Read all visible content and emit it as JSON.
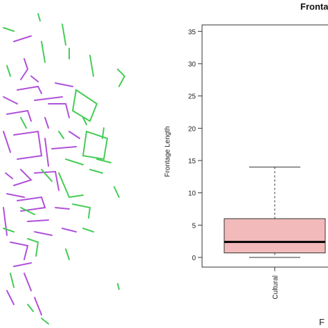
{
  "map": {
    "colors": {
      "cultural": "#b050d8",
      "other": "#44cc55"
    }
  },
  "chart_data": {
    "type": "boxplot",
    "title": "Fronta",
    "ylabel": "Frontage Length",
    "xlabel_partial": "F",
    "ylim": [
      -1.5,
      36
    ],
    "yticks": [
      0,
      5,
      10,
      15,
      20,
      25,
      30,
      35
    ],
    "categories": [
      "Cultural"
    ],
    "boxes": [
      {
        "category": "Cultural",
        "min": 0,
        "q1": 0.7,
        "median": 2.4,
        "q3": 6.0,
        "max": 14.0
      }
    ],
    "box_color": "#f2baba"
  }
}
